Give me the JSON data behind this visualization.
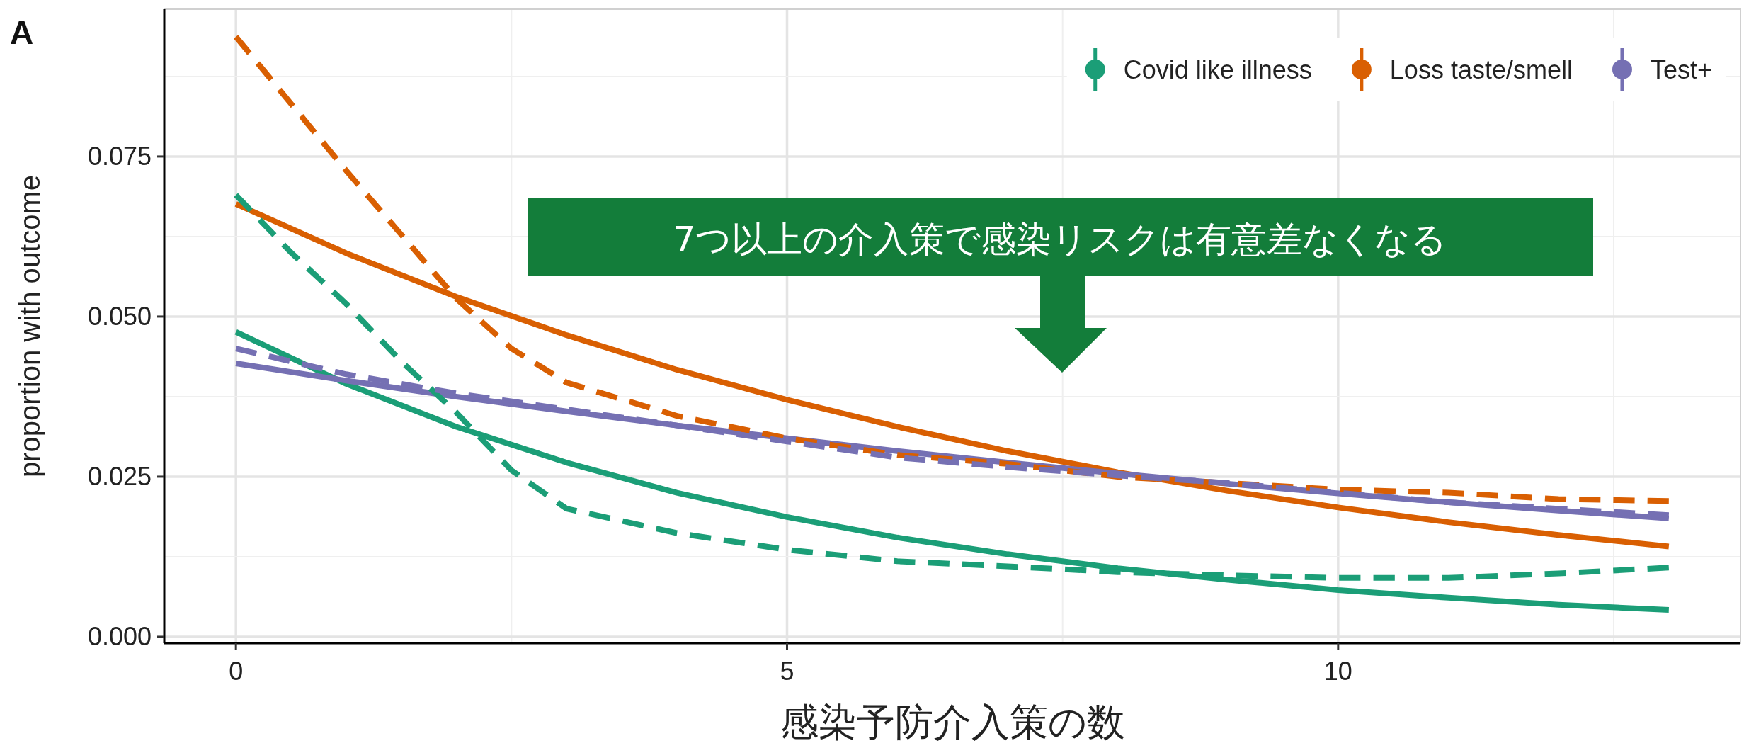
{
  "chart_data": {
    "type": "line",
    "title": "A",
    "xlabel": "感染予防介入策の数",
    "ylabel": "proportion with outcome",
    "annotations": [
      "7つ以上の介入策で感染リスクは有意差なくなる"
    ],
    "x": [
      0,
      1,
      2,
      3,
      4,
      5,
      6,
      7,
      8,
      9,
      10,
      11,
      12,
      13
    ],
    "series": [
      {
        "name": "Covid like illness",
        "color": "#1b9e77",
        "line_style": "solid",
        "values": [
          0.0476,
          0.0395,
          0.0328,
          0.0272,
          0.0225,
          0.0187,
          0.0155,
          0.0129,
          0.0107,
          0.0089,
          0.0073,
          0.0061,
          0.005,
          0.0042
        ]
      },
      {
        "name": "Loss taste/smell",
        "color": "#d95f02",
        "line_style": "solid",
        "values": [
          0.0676,
          0.0599,
          0.0531,
          0.0471,
          0.0417,
          0.037,
          0.0328,
          0.029,
          0.0257,
          0.0228,
          0.0202,
          0.0179,
          0.0159,
          0.0141
        ]
      },
      {
        "name": "Test+",
        "color": "#7570b3",
        "line_style": "solid",
        "values": [
          0.0427,
          0.04,
          0.0375,
          0.0352,
          0.033,
          0.031,
          0.029,
          0.0272,
          0.0255,
          0.0239,
          0.0224,
          0.021,
          0.0197,
          0.0185
        ]
      },
      {
        "color": "#1b9e77",
        "line_style": "dashed",
        "x": [
          0,
          0.5,
          1,
          1.5,
          2,
          2.5,
          3,
          4,
          5,
          6,
          7,
          8,
          9,
          10,
          11,
          12,
          13
        ],
        "values": [
          0.069,
          0.06,
          0.052,
          0.043,
          0.035,
          0.026,
          0.02,
          0.0162,
          0.0136,
          0.0118,
          0.011,
          0.0101,
          0.0096,
          0.0092,
          0.0092,
          0.0099,
          0.0108
        ]
      },
      {
        "color": "#d95f02",
        "line_style": "dashed",
        "x": [
          0,
          1,
          2,
          2.5,
          3,
          4,
          5,
          6,
          7,
          8,
          9,
          10,
          11,
          12,
          13
        ],
        "values": [
          0.0937,
          0.0728,
          0.0528,
          0.045,
          0.0397,
          0.0345,
          0.031,
          0.0284,
          0.027,
          0.025,
          0.024,
          0.023,
          0.0225,
          0.0215,
          0.0212
        ]
      },
      {
        "color": "#7570b3",
        "line_style": "dashed",
        "values": [
          0.045,
          0.041,
          0.038,
          0.0355,
          0.033,
          0.0305,
          0.028,
          0.0265,
          0.0252,
          0.024,
          0.0225,
          0.021,
          0.02,
          0.019
        ]
      }
    ],
    "xlim": [
      -0.65,
      13.65
    ],
    "ylim": [
      -0.001,
      0.098
    ],
    "xticks": [
      0,
      5,
      10
    ],
    "yticks": [
      {
        "value": 0,
        "label": "0.000"
      },
      {
        "value": 0.025,
        "label": "0.025"
      },
      {
        "value": 0.05,
        "label": "0.050"
      },
      {
        "value": 0.075,
        "label": "0.075"
      }
    ],
    "grid": true,
    "legend": "top right"
  }
}
